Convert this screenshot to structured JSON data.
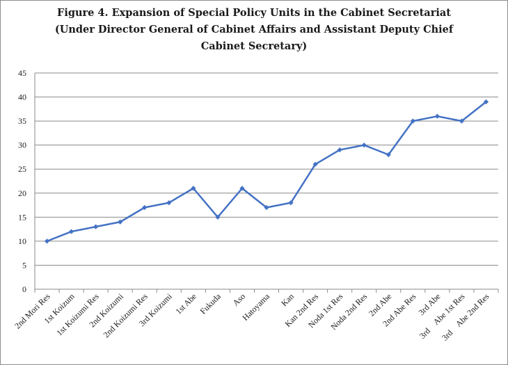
{
  "chart_data": {
    "type": "line",
    "title": [
      "Figure 4. Expansion of Special Policy Units in the Cabinet Secretariat",
      "(Under Director General of Cabinet Affairs and Assistant Deputy Chief",
      "Cabinet Secretary)"
    ],
    "xlabel": "",
    "ylabel": "",
    "ylim": [
      0,
      45
    ],
    "yticks": [
      0,
      5,
      10,
      15,
      20,
      25,
      30,
      35,
      40,
      45
    ],
    "grid": true,
    "legend": "none",
    "series_color": "#4472C4",
    "categories": [
      "2nd Mori Res",
      "1st Koizum",
      "1st Koizumi Res",
      "2nd Koizumi",
      "2nd Koizumi Res",
      "3rd Koizumi",
      "1st Abe",
      "Fukuda",
      "Aso",
      "Hatoyama",
      "Kan",
      "Kan 2nd Res",
      "Noda 1st Res",
      "Noda 2nd Res",
      "2nd Abe",
      "2nd Abe Res",
      "3rd Abe",
      "3rd　Abe 1st Res",
      "3rd　Abe 2nd Res"
    ],
    "series": [
      {
        "name": "Special Policy Units",
        "values": [
          10,
          12,
          13,
          14,
          17,
          18,
          21,
          15,
          21,
          17,
          18,
          26,
          29,
          30,
          28,
          35,
          36,
          35,
          39
        ]
      }
    ]
  }
}
